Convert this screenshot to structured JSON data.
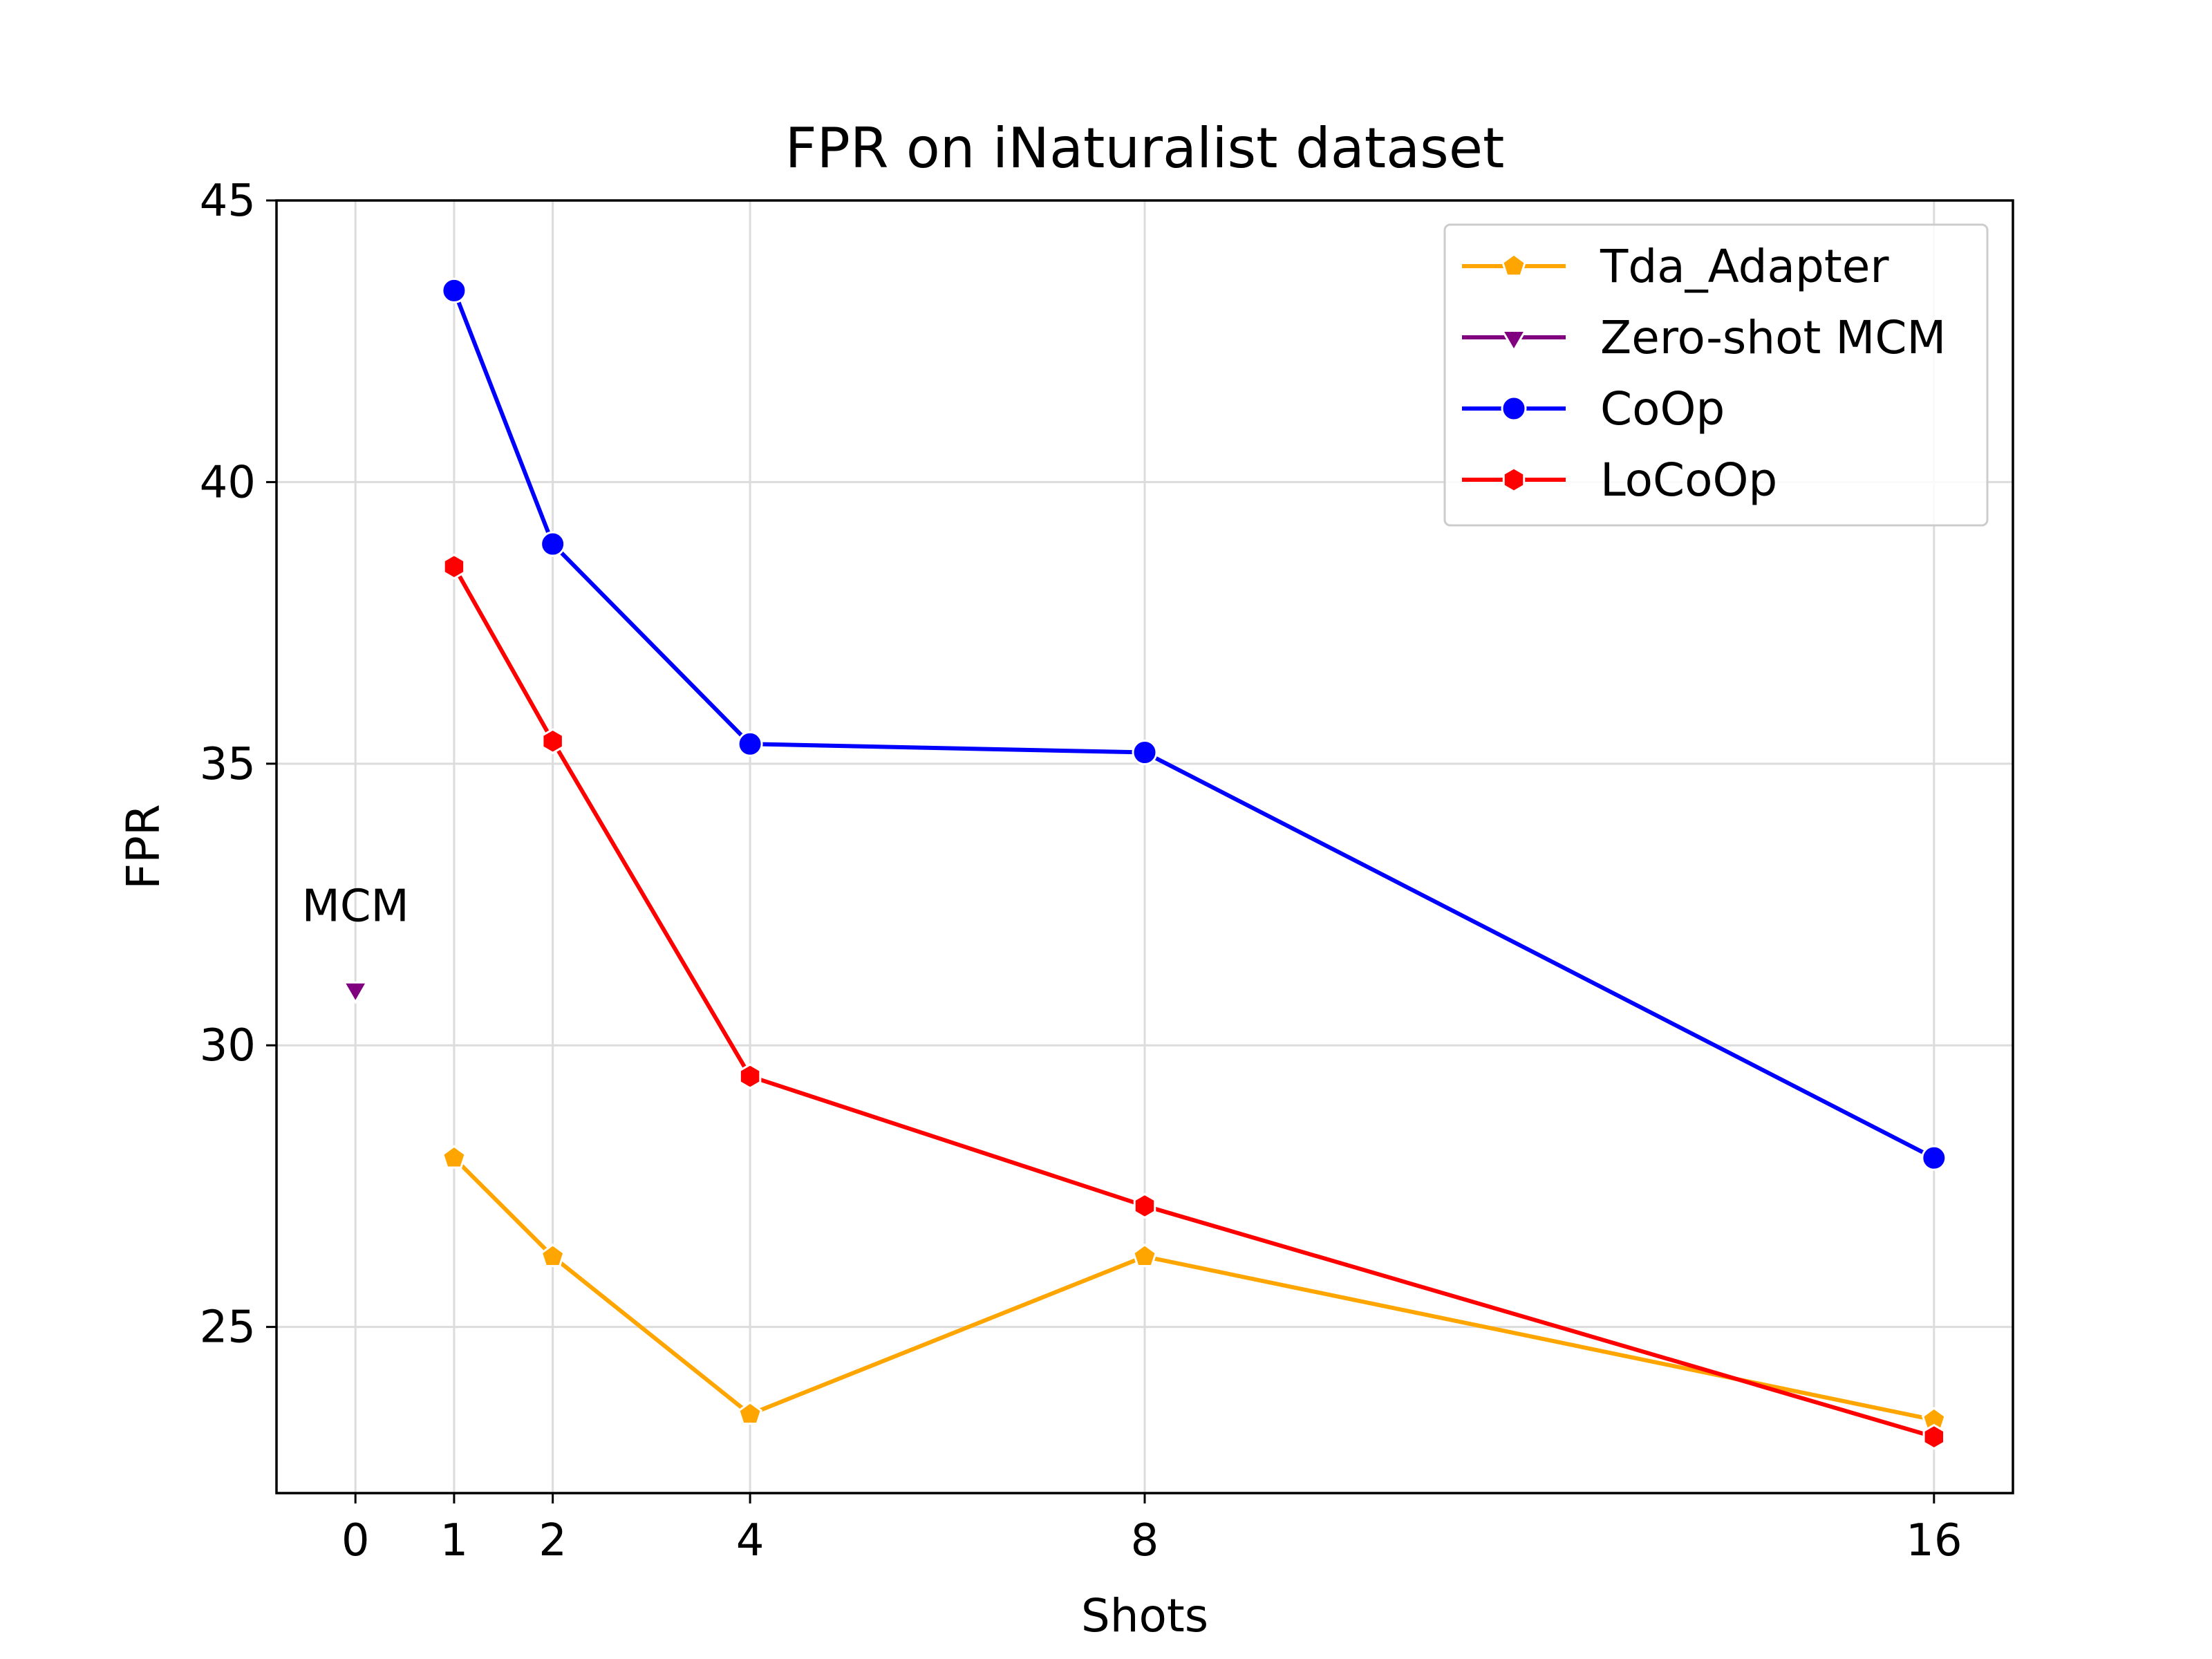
{
  "chart_data": {
    "type": "line",
    "title": "FPR on iNaturalist dataset",
    "xlabel": "Shots",
    "ylabel": "FPR",
    "x_ticks": [
      0,
      1,
      2,
      4,
      8,
      16
    ],
    "y_ticks": [
      25,
      30,
      35,
      40,
      45
    ],
    "xlim": [
      -0.8,
      16.8
    ],
    "ylim": [
      22.05,
      45
    ],
    "grid": true,
    "legend_position": "top-right",
    "series": [
      {
        "name": "Tda_Adapter",
        "color": "#FFA500",
        "marker": "pentagon",
        "x": [
          1,
          2,
          4,
          8,
          16
        ],
        "y": [
          28.0,
          26.25,
          23.45,
          26.25,
          23.35
        ]
      },
      {
        "name": "Zero-shot MCM",
        "color": "#800080",
        "marker": "triangle-down",
        "x": [
          0
        ],
        "y": [
          31.0
        ]
      },
      {
        "name": "CoOp",
        "color": "#0000FF",
        "marker": "circle",
        "x": [
          1,
          2,
          4,
          8,
          16
        ],
        "y": [
          43.4,
          38.9,
          35.35,
          35.2,
          28.0
        ]
      },
      {
        "name": "LoCoOp",
        "color": "#FF0000",
        "marker": "hexagon",
        "x": [
          1,
          2,
          4,
          8,
          16
        ],
        "y": [
          38.5,
          35.4,
          29.45,
          27.15,
          23.05
        ]
      }
    ],
    "annotations": [
      {
        "text": "MCM",
        "x": 0,
        "y": 32.5
      }
    ]
  }
}
